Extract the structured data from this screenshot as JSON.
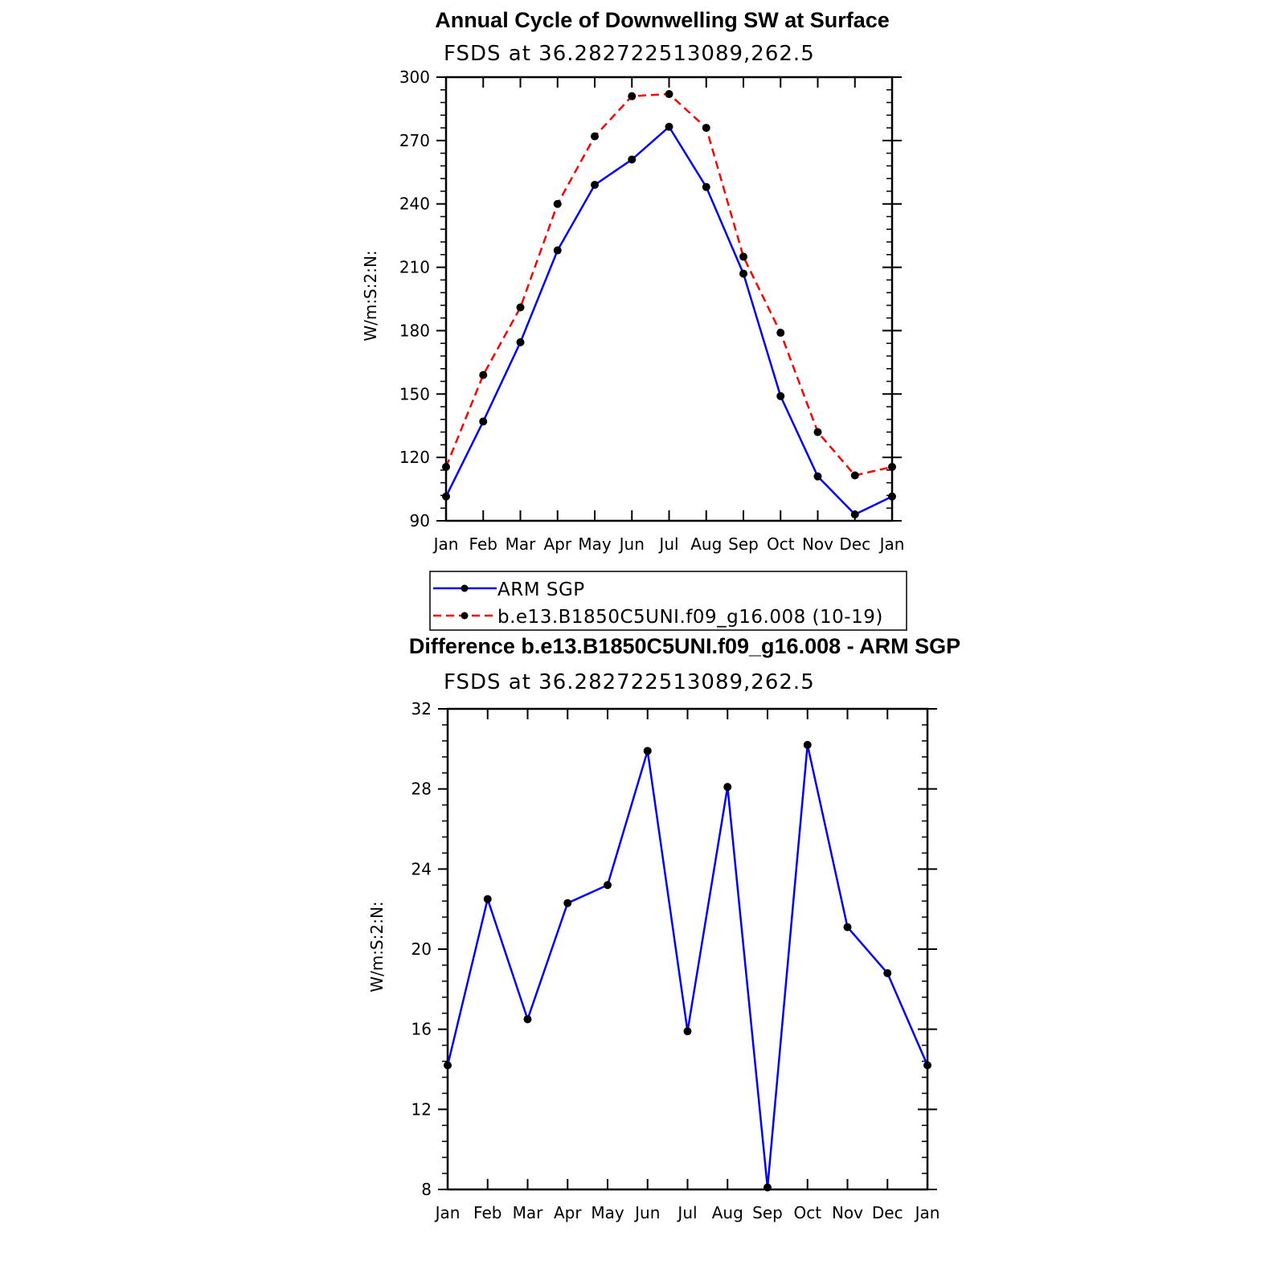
{
  "chart_data": [
    {
      "type": "line",
      "title": "Annual Cycle of Downwelling SW at Surface",
      "subtitle": "FSDS at 36.282722513089,262.5",
      "ylabel": "W/m:S:2:N:",
      "xlabel": "",
      "categories": [
        "Jan",
        "Feb",
        "Mar",
        "Apr",
        "May",
        "Jun",
        "Jul",
        "Aug",
        "Sep",
        "Oct",
        "Nov",
        "Dec",
        "Jan"
      ],
      "ylim": [
        90,
        300
      ],
      "yticks": [
        90,
        120,
        150,
        180,
        210,
        240,
        270,
        300
      ],
      "grid": false,
      "legend": "below",
      "series": [
        {
          "name": "ARM SGP",
          "color": "#0000ff",
          "dash": "solid",
          "values": [
            101.5,
            137,
            174.5,
            218,
            249,
            261,
            276.5,
            248,
            207,
            149,
            111,
            93,
            101.5
          ]
        },
        {
          "name": "b.e13.B1850C5UNI.f09_g16.008 (10-19)",
          "color": "#ff0000",
          "dash": "dashed",
          "values": [
            115.5,
            159,
            191,
            240,
            272,
            291,
            292,
            276,
            215,
            179,
            132,
            111.5,
            115.5
          ]
        }
      ]
    },
    {
      "type": "line",
      "title": "Difference b.e13.B1850C5UNI.f09_g16.008 - ARM SGP",
      "subtitle": "FSDS at 36.282722513089,262.5",
      "ylabel": "W/m:S:2:N:",
      "xlabel": "",
      "categories": [
        "Jan",
        "Feb",
        "Mar",
        "Apr",
        "May",
        "Jun",
        "Jul",
        "Aug",
        "Sep",
        "Oct",
        "Nov",
        "Dec",
        "Jan"
      ],
      "ylim": [
        8,
        32
      ],
      "yticks": [
        8,
        12,
        16,
        20,
        24,
        28,
        32
      ],
      "grid": false,
      "series": [
        {
          "color": "#0000ff",
          "dash": "solid",
          "values": [
            14.2,
            22.5,
            16.5,
            22.3,
            23.2,
            29.9,
            15.9,
            28.1,
            8.1,
            30.2,
            21.1,
            18.8,
            14.2
          ]
        }
      ]
    }
  ]
}
